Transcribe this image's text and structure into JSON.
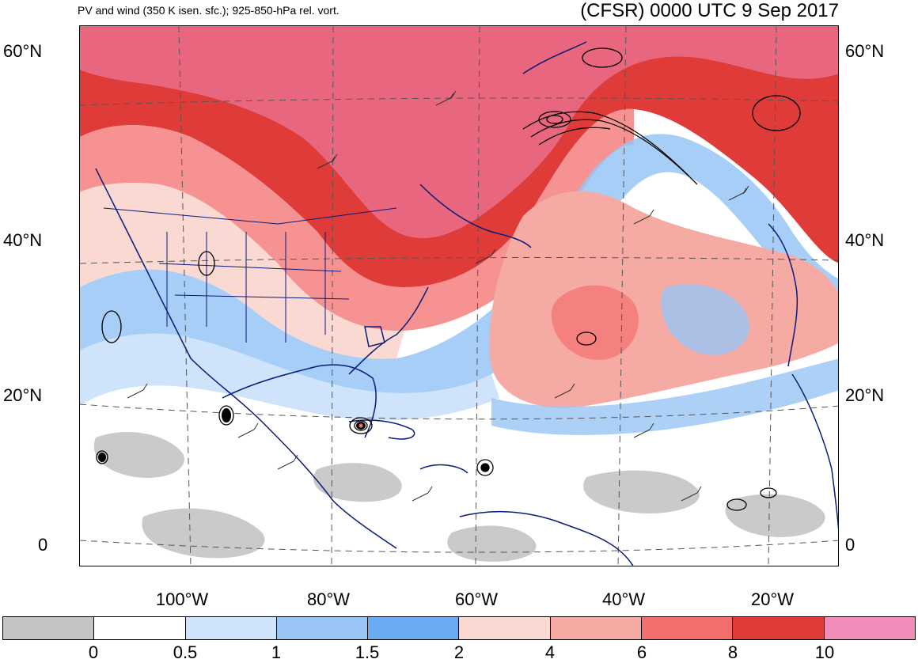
{
  "header": {
    "left_title": "PV and wind (350 K isen. sfc.); 925-850-hPa rel. vort.",
    "right_title": "(CFSR) 0000 UTC 9 Sep 2017"
  },
  "latitudes": [
    "60°N",
    "40°N",
    "20°N",
    "0"
  ],
  "longitudes": [
    "100°W",
    "80°W",
    "60°W",
    "40°W",
    "20°W"
  ],
  "colorbar": {
    "colors": [
      "#c4c4c4",
      "#ffffff",
      "#cfe3fb",
      "#98c5f4",
      "#6aaaf0",
      "#f9d9d2",
      "#f6aaa4",
      "#f36f6d",
      "#de3b39",
      "#f08dba"
    ],
    "tick_labels": [
      "0",
      "0.5",
      "1",
      "1.5",
      "2",
      "4",
      "6",
      "8",
      "10"
    ]
  },
  "colors": {
    "land_outline": "#0a1a7a",
    "contour": "#000000",
    "grid": "#555555"
  }
}
